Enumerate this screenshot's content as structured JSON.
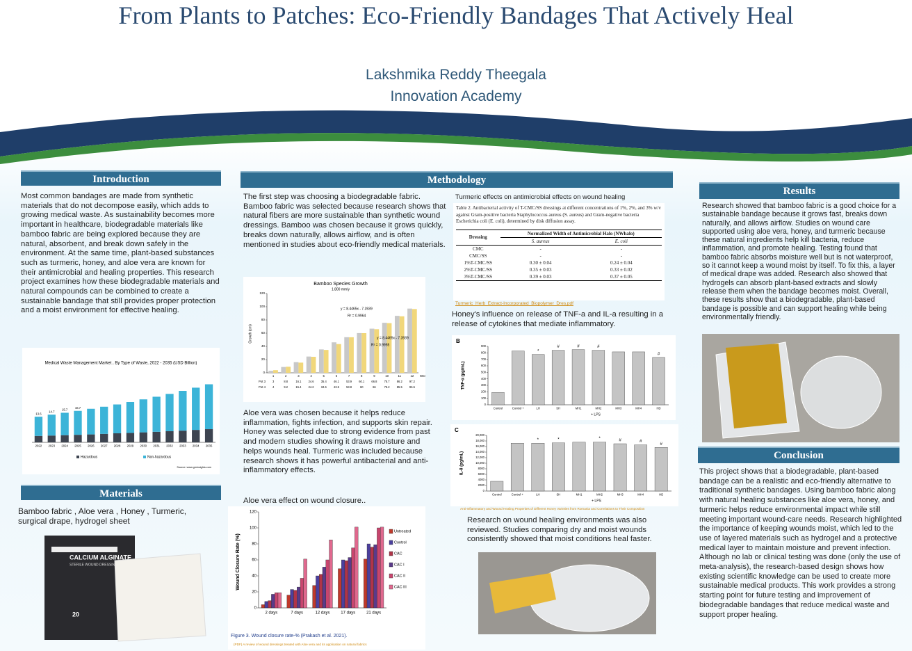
{
  "header": {
    "title": "From Plants to Patches: Eco-Friendly Bandages That Actively Heal",
    "author": "Lakshmika Reddy Theegala",
    "school": "Innovation Academy"
  },
  "introduction": {
    "heading": "Introduction",
    "text": "Most common bandages are made from synthetic materials that do not decompose easily, which adds to growing medical waste. As sustainability becomes more important in healthcare, biodegradable materials like bamboo fabric are being explored because they are natural, absorbent, and break down safely in the environment. At the same time, plant-based substances such as turmeric, honey, and aloe vera are known for their antimicrobial and healing properties. This research project examines how these biodegradable materials and natural compounds can be combined to create a sustainable bandage that still provides proper protection and a moist environment for effective healing.",
    "figure": {
      "type": "bar",
      "title": "Medical Waste Management Market , By Type of Waste, 2022 - 2035 (USD Billion)",
      "categories": [
        "2022",
        "2023",
        "2024",
        "2025",
        "2026",
        "2027",
        "2028",
        "2029",
        "2030",
        "2031",
        "2032",
        "2033",
        "2034",
        "2035"
      ],
      "series": [
        {
          "name": "Hazardous",
          "color": "#3d4450",
          "values": [
            3.4,
            3.6,
            3.8,
            4,
            4.2,
            4.5,
            4.8,
            5,
            5.3,
            5.6,
            5.9,
            6.2,
            6.6,
            7
          ]
        },
        {
          "name": "Non-hazardous",
          "color": "#3cb4d8",
          "values": [
            10.2,
            11.1,
            11.9,
            12.7,
            13.6,
            14.4,
            15.3,
            16.4,
            17.5,
            18.6,
            19.8,
            21.1,
            22.4,
            23.8
          ]
        }
      ],
      "total_labels": [
        13.6,
        14.7,
        15.7,
        16.7
      ],
      "source": "Source: www.gminsights.com"
    }
  },
  "materials": {
    "heading": "Materials",
    "text": "Bamboo fabric , Aloe vera , Honey , Turmeric, surgical drape, hydrogel sheet",
    "product_name": "CALCIUM ALGINATE",
    "product_sub": "STERILE WOUND DRESSING",
    "product_count": "20"
  },
  "methodology": {
    "heading": "Methodology",
    "text1": "The first step was choosing a biodegradable fabric. Bamboo fabric was selected because research shows that natural fibers are more sustainable than synthetic wound dressings. Bamboo was chosen because it grows quickly, breaks down naturally, allows airflow, and is often mentioned in studies about eco-friendly medical materials.",
    "bamboo_chart": {
      "type": "bar",
      "title": "Bamboo Species Growth",
      "subtitle": "1.800 mm/y",
      "y_label": "Growth (cm)",
      "x_label": "Weeks",
      "categories": [
        1,
        2,
        3,
        4,
        5,
        6,
        7,
        8,
        9,
        10,
        11,
        12
      ],
      "series": [
        {
          "name": "Pot 3",
          "color": "#c8c8c8",
          "values": [
            3,
            8.8,
            16.1,
            24.6,
            35.4,
            46.1,
            53.9,
            60.1,
            66.8,
            75.7,
            86.2,
            97.2
          ]
        },
        {
          "name": "Pot 4",
          "color": "#f1d77a",
          "values": [
            4,
            9.2,
            15.4,
            24.2,
            34.6,
            43.5,
            53.8,
            60,
            66,
            75.2,
            85.5,
            96.5
          ]
        }
      ],
      "ylim": [
        0,
        120
      ],
      "yticks": [
        0,
        20,
        40,
        60,
        80,
        100,
        120
      ],
      "equations": [
        "y = 8.4465x - 7.3939",
        "R² = 0.9964",
        "y = 8.4465x - 7.3939",
        "R² = 0.9955"
      ]
    },
    "text2": "Aloe vera was chosen because it helps reduce inflammation, fights infection, and supports skin repair. Honey was selected due to strong evidence from past  and modern studies showing it draws moisture and helps wounds heal. Turmeric was included because research shows it has powerful antibacterial and anti-inflammatory effects.",
    "aloe_caption": "Aloe vera effect on wound closure..",
    "wound_chart": {
      "type": "bar",
      "y_label": "Wound Closure Rate (%)",
      "categories": [
        "2 days",
        "7 days",
        "12 days",
        "17 days",
        "21 days"
      ],
      "ylim": [
        0,
        120
      ],
      "yticks": [
        0,
        20,
        40,
        60,
        80,
        100,
        120
      ],
      "series": [
        {
          "name": "Untreated",
          "color": "#c0392b",
          "values": [
            4,
            16,
            28,
            49,
            61
          ]
        },
        {
          "name": "Control",
          "color": "#4b3f9e",
          "values": [
            8,
            23,
            40,
            60,
            80
          ]
        },
        {
          "name": "CAC",
          "color": "#b03448",
          "values": [
            9,
            22,
            42,
            59,
            76
          ]
        },
        {
          "name": "CAC I",
          "color": "#5a3a8a",
          "values": [
            17,
            26,
            51,
            63,
            79
          ]
        },
        {
          "name": "CAC II",
          "color": "#c8456e",
          "values": [
            19,
            37,
            60,
            75,
            100
          ]
        },
        {
          "name": "CAC III",
          "color": "#e0688e",
          "values": [
            19,
            61,
            85,
            101,
            101
          ]
        }
      ],
      "caption": "Figure 3. Wound closure rate-% (Prakash et al. 2021).",
      "link": "(PDF) A review of wound dressings treated with Aloe vera and its application on natural fabrics"
    },
    "turmeric_caption": "Turmeric effects on antimicrobial effects on wound healing",
    "table": {
      "caption": "Table 2. Antibacterial activity of T-CMC/SS dressings at different concentrations of 1%, 2%, and 3% w/v against Gram-positive bacteria Staphylococcus aureus (S. aureus) and Gram-negative bacteria Escherichia coli (E. coli), determined by disk diffusion assay.",
      "header": [
        "Dressing",
        "Normalized Width of Antimicrobial Halo (NWhalo)",
        "S. aureus",
        "E. coli"
      ],
      "rows": [
        [
          "CMC",
          "-",
          "-"
        ],
        [
          "CMC/SS",
          "-",
          "-"
        ],
        [
          "1%T-CMC/SS",
          "0.30 ± 0.04",
          "0.24 ± 0.04"
        ],
        [
          "2%T-CMC/SS",
          "0.35 ± 0.03",
          "0.33 ± 0.02"
        ],
        [
          "3%T-CMC/SS",
          "0.39 ± 0.03",
          "0.37 ± 0.05"
        ]
      ]
    },
    "turmeric_link": "Turmeric_Herb_Extract-Incorporated_Biopolymer_Dres.pdf",
    "honey_text": "Honey's influence on release of  TNF-a and IL-a resulting in a release of cytokines that mediate inflammatory.",
    "tnf_chart": {
      "type": "bar",
      "panel": "B",
      "y_label": "TNF-α (pg/mL)",
      "x_label": "+ LPS",
      "color": "#c4c4c4",
      "categories": [
        "Control",
        "Control +",
        "LH",
        "SH",
        "MH1",
        "MH2",
        "MH3",
        "MH4",
        "HD"
      ],
      "values": [
        190,
        830,
        775,
        840,
        850,
        840,
        815,
        815,
        730
      ],
      "markers": [
        null,
        null,
        "*",
        "#",
        "#",
        "#",
        null,
        null,
        "#"
      ],
      "ylim": [
        0,
        900
      ],
      "yticks": [
        0,
        100,
        200,
        300,
        400,
        500,
        600,
        700,
        800,
        900
      ]
    },
    "il8_chart": {
      "type": "bar",
      "panel": "C",
      "y_label": "IL-8 (pg/mL)",
      "x_label": "+ LPS",
      "color": "#c4c4c4",
      "categories": [
        "Control",
        "Control +",
        "LH",
        "SH",
        "MH1",
        "MH2",
        "MH3",
        "MH4",
        "HD"
      ],
      "values": [
        3500,
        17200,
        17200,
        17300,
        17600,
        17600,
        17000,
        16600,
        15700
      ],
      "markers": [
        null,
        null,
        "*",
        "*",
        null,
        "*",
        "#",
        "#",
        "#"
      ],
      "ylim": [
        0,
        20000
      ],
      "yticks": [
        0,
        {
          "value": 2000,
          "label": "2000"
        },
        {
          "value": 4000,
          "label": "4000"
        },
        {
          "value": 6000,
          "label": "6000"
        },
        {
          "value": 8000,
          "label": "8000"
        },
        {
          "value": 10000,
          "label": "10,000"
        },
        {
          "value": 12000,
          "label": "12,000"
        },
        {
          "value": 14000,
          "label": "14,000"
        },
        {
          "value": 16000,
          "label": "16,000"
        },
        {
          "value": 18000,
          "label": "18,000"
        },
        {
          "value": 20000,
          "label": "20,000"
        }
      ]
    },
    "honey_link": "Anti-Inflammatory and Wound Healing Properties of Different Honey Varieties from Romania and Correlations to Their Composition",
    "environment_text": "Research on wound healing environments was also reviewed. Studies comparing dry and moist wounds consistently showed that moist conditions heal faster."
  },
  "results": {
    "heading": "Results",
    "text": "Research showed that bamboo fabric is a good choice for a sustainable bandage because it grows fast, breaks down naturally, and allows airflow. Studies on wound care supported using aloe vera, honey, and turmeric because these natural ingredients help kill bacteria, reduce inflammation, and promote healing. Testing found that bamboo fabric absorbs moisture well but is not waterproof, so it cannot keep a wound moist by itself. To fix this, a layer of medical drape was added. Research also showed that hydrogels can absorb plant-based extracts and slowly release them when the bandage becomes moist. Overall, these results show that a biodegradable, plant-based bandage is possible and can support healing while being environmentally friendly."
  },
  "conclusion": {
    "heading": "Conclusion",
    "text": "This project shows that a biodegradable, plant-based bandage can be a realistic and eco-friendly alternative to traditional synthetic bandages. Using bamboo fabric along with natural healing substances like aloe vera, honey, and turmeric helps reduce environmental impact while still meeting important wound-care needs. Research highlighted the importance of keeping wounds moist, which led to the use of layered materials such as hydrogel and a protective medical layer to maintain moisture and prevent infection. Although no lab or clinical testing was done (only the use of meta-analysis), the research-based design shows how existing scientific knowledge can be used to create more sustainable medical products. This work provides a strong starting point for future testing and improvement of biodegradable bandages that reduce medical waste and support proper healing."
  }
}
